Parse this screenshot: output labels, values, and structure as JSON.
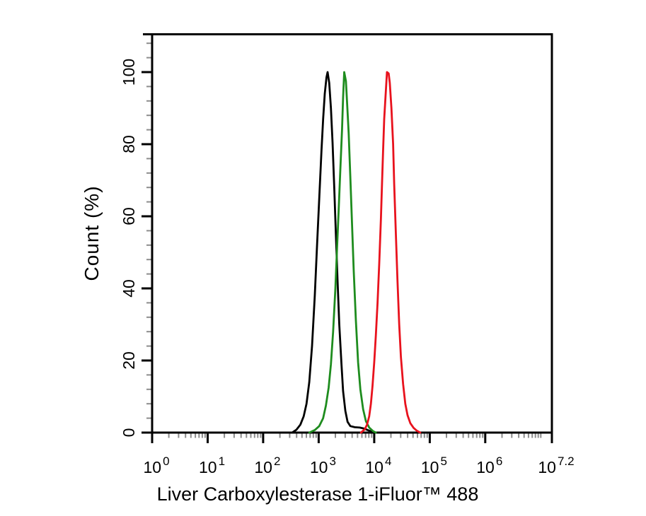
{
  "figure": {
    "background": "#ffffff"
  },
  "chart_data": {
    "type": "line",
    "chart_kind": "flow-cytometry-overlay-histogram",
    "title": "",
    "xlabel": "Liver Carboxylesterase 1-iFluor™ 488",
    "ylabel": "Count (%)",
    "x_scale": "log10",
    "x_range_decades": [
      0,
      7.2
    ],
    "x_ticks": [
      {
        "decade": 0,
        "base": "10",
        "exp": "0"
      },
      {
        "decade": 1,
        "base": "10",
        "exp": "1"
      },
      {
        "decade": 2,
        "base": "10",
        "exp": "2"
      },
      {
        "decade": 3,
        "base": "10",
        "exp": "3"
      },
      {
        "decade": 4,
        "base": "10",
        "exp": "4"
      },
      {
        "decade": 5,
        "base": "10",
        "exp": "5"
      },
      {
        "decade": 6,
        "base": "10",
        "exp": "6"
      },
      {
        "decade": 7.2,
        "base": "10",
        "exp": "7.2"
      }
    ],
    "x_minor_subdivisions": [
      2,
      3,
      4,
      5,
      6,
      7,
      8,
      9
    ],
    "x_extra_minor_decade": 7.0,
    "y_range": [
      0,
      110.5
    ],
    "y_ticks": [
      0,
      20,
      40,
      60,
      80,
      100
    ],
    "y_minor_step": 4,
    "y_minor_max": 108,
    "grid": false,
    "legend": "none",
    "axis_color": "#000000",
    "minor_tick_color": "#8c8c8c",
    "series": [
      {
        "name": "black",
        "color": "#000000",
        "peak_decade": 3.16,
        "peak_percent": 100,
        "points": [
          [
            2.52,
            0
          ],
          [
            2.6,
            0.8
          ],
          [
            2.67,
            2.2
          ],
          [
            2.73,
            4.5
          ],
          [
            2.78,
            8
          ],
          [
            2.83,
            14
          ],
          [
            2.88,
            24
          ],
          [
            2.93,
            38
          ],
          [
            2.97,
            52
          ],
          [
            3.01,
            65
          ],
          [
            3.05,
            78
          ],
          [
            3.08,
            87
          ],
          [
            3.11,
            94
          ],
          [
            3.14,
            98.5
          ],
          [
            3.16,
            100
          ],
          [
            3.19,
            97
          ],
          [
            3.22,
            90
          ],
          [
            3.25,
            80.5
          ],
          [
            3.28,
            68
          ],
          [
            3.31,
            55
          ],
          [
            3.34,
            42
          ],
          [
            3.37,
            30
          ],
          [
            3.41,
            19
          ],
          [
            3.44,
            11.5
          ],
          [
            3.48,
            6
          ],
          [
            3.52,
            3
          ],
          [
            3.57,
            1.8
          ],
          [
            3.65,
            1.5
          ],
          [
            3.74,
            1.4
          ],
          [
            3.82,
            1.1
          ],
          [
            3.9,
            0.6
          ],
          [
            3.97,
            0.2
          ],
          [
            4.01,
            0
          ]
        ]
      },
      {
        "name": "green",
        "color": "#1e8c1e",
        "peak_decade": 3.46,
        "peak_percent": 100,
        "points": [
          [
            2.83,
            0
          ],
          [
            2.93,
            0.7
          ],
          [
            3.01,
            1.8
          ],
          [
            3.08,
            4
          ],
          [
            3.13,
            7.5
          ],
          [
            3.18,
            12.5
          ],
          [
            3.22,
            19
          ],
          [
            3.26,
            28
          ],
          [
            3.3,
            40
          ],
          [
            3.33,
            51
          ],
          [
            3.36,
            62
          ],
          [
            3.39,
            73
          ],
          [
            3.42,
            84
          ],
          [
            3.44,
            93
          ],
          [
            3.46,
            100
          ],
          [
            3.49,
            97.5
          ],
          [
            3.51,
            92
          ],
          [
            3.54,
            83
          ],
          [
            3.57,
            71
          ],
          [
            3.6,
            58
          ],
          [
            3.63,
            45
          ],
          [
            3.67,
            31
          ],
          [
            3.71,
            19.5
          ],
          [
            3.75,
            12
          ],
          [
            3.8,
            6.5
          ],
          [
            3.85,
            3.2
          ],
          [
            3.91,
            1.4
          ],
          [
            3.98,
            0.4
          ],
          [
            4.03,
            0
          ]
        ]
      },
      {
        "name": "red",
        "color": "#e8121d",
        "peak_decade": 4.23,
        "peak_percent": 100,
        "points": [
          [
            3.76,
            0
          ],
          [
            3.83,
            0.9
          ],
          [
            3.87,
            2.2
          ],
          [
            3.91,
            4.5
          ],
          [
            3.94,
            8
          ],
          [
            3.97,
            13
          ],
          [
            4.0,
            19.5
          ],
          [
            4.03,
            27
          ],
          [
            4.06,
            36
          ],
          [
            4.09,
            47
          ],
          [
            4.12,
            59
          ],
          [
            4.14,
            69
          ],
          [
            4.16,
            78
          ],
          [
            4.18,
            87
          ],
          [
            4.21,
            95
          ],
          [
            4.23,
            100
          ],
          [
            4.26,
            99.6
          ],
          [
            4.28,
            97
          ],
          [
            4.31,
            90
          ],
          [
            4.34,
            80
          ],
          [
            4.36,
            69
          ],
          [
            4.39,
            55
          ],
          [
            4.42,
            42
          ],
          [
            4.45,
            30
          ],
          [
            4.48,
            21
          ],
          [
            4.52,
            13.5
          ],
          [
            4.56,
            8
          ],
          [
            4.6,
            4.8
          ],
          [
            4.65,
            2.6
          ],
          [
            4.71,
            1.3
          ],
          [
            4.77,
            0.5
          ],
          [
            4.83,
            0
          ]
        ]
      }
    ]
  }
}
